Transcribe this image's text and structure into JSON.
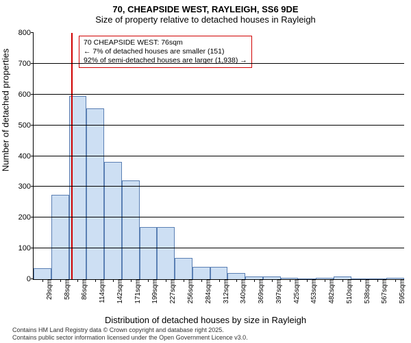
{
  "title1": "70, CHEAPSIDE WEST, RAYLEIGH, SS6 9DE",
  "title2": "Size of property relative to detached houses in Rayleigh",
  "ylabel": "Number of detached properties",
  "xlabel": "Distribution of detached houses by size in Rayleigh",
  "footnote1": "Contains HM Land Registry data © Crown copyright and database right 2025.",
  "footnote2": "Contains public sector information licensed under the Open Government Licence v3.0.",
  "chart": {
    "type": "histogram",
    "ylim": [
      0,
      800
    ],
    "yticks": [
      0,
      100,
      200,
      300,
      400,
      500,
      600,
      700,
      800
    ],
    "bar_fill": "#cddff3",
    "bar_border": "#5a7fb3",
    "marker_line_color": "#d00000",
    "marker_value": 76,
    "categories": [
      "29sqm",
      "58sqm",
      "86sqm",
      "114sqm",
      "142sqm",
      "171sqm",
      "199sqm",
      "227sqm",
      "256sqm",
      "284sqm",
      "312sqm",
      "340sqm",
      "369sqm",
      "397sqm",
      "425sqm",
      "453sqm",
      "482sqm",
      "510sqm",
      "538sqm",
      "567sqm",
      "595sqm"
    ],
    "values": [
      35,
      275,
      595,
      555,
      380,
      320,
      170,
      170,
      70,
      40,
      40,
      20,
      10,
      10,
      4,
      3,
      4,
      10,
      3,
      2,
      4
    ],
    "infobox": {
      "line1": "70 CHEAPSIDE WEST: 76sqm",
      "line2": "← 7% of detached houses are smaller (151)",
      "line3": "92% of semi-detached houses are larger (1,938) →"
    },
    "title_fontsize": 13,
    "label_fontsize": 13,
    "tick_fontsize": 11
  }
}
